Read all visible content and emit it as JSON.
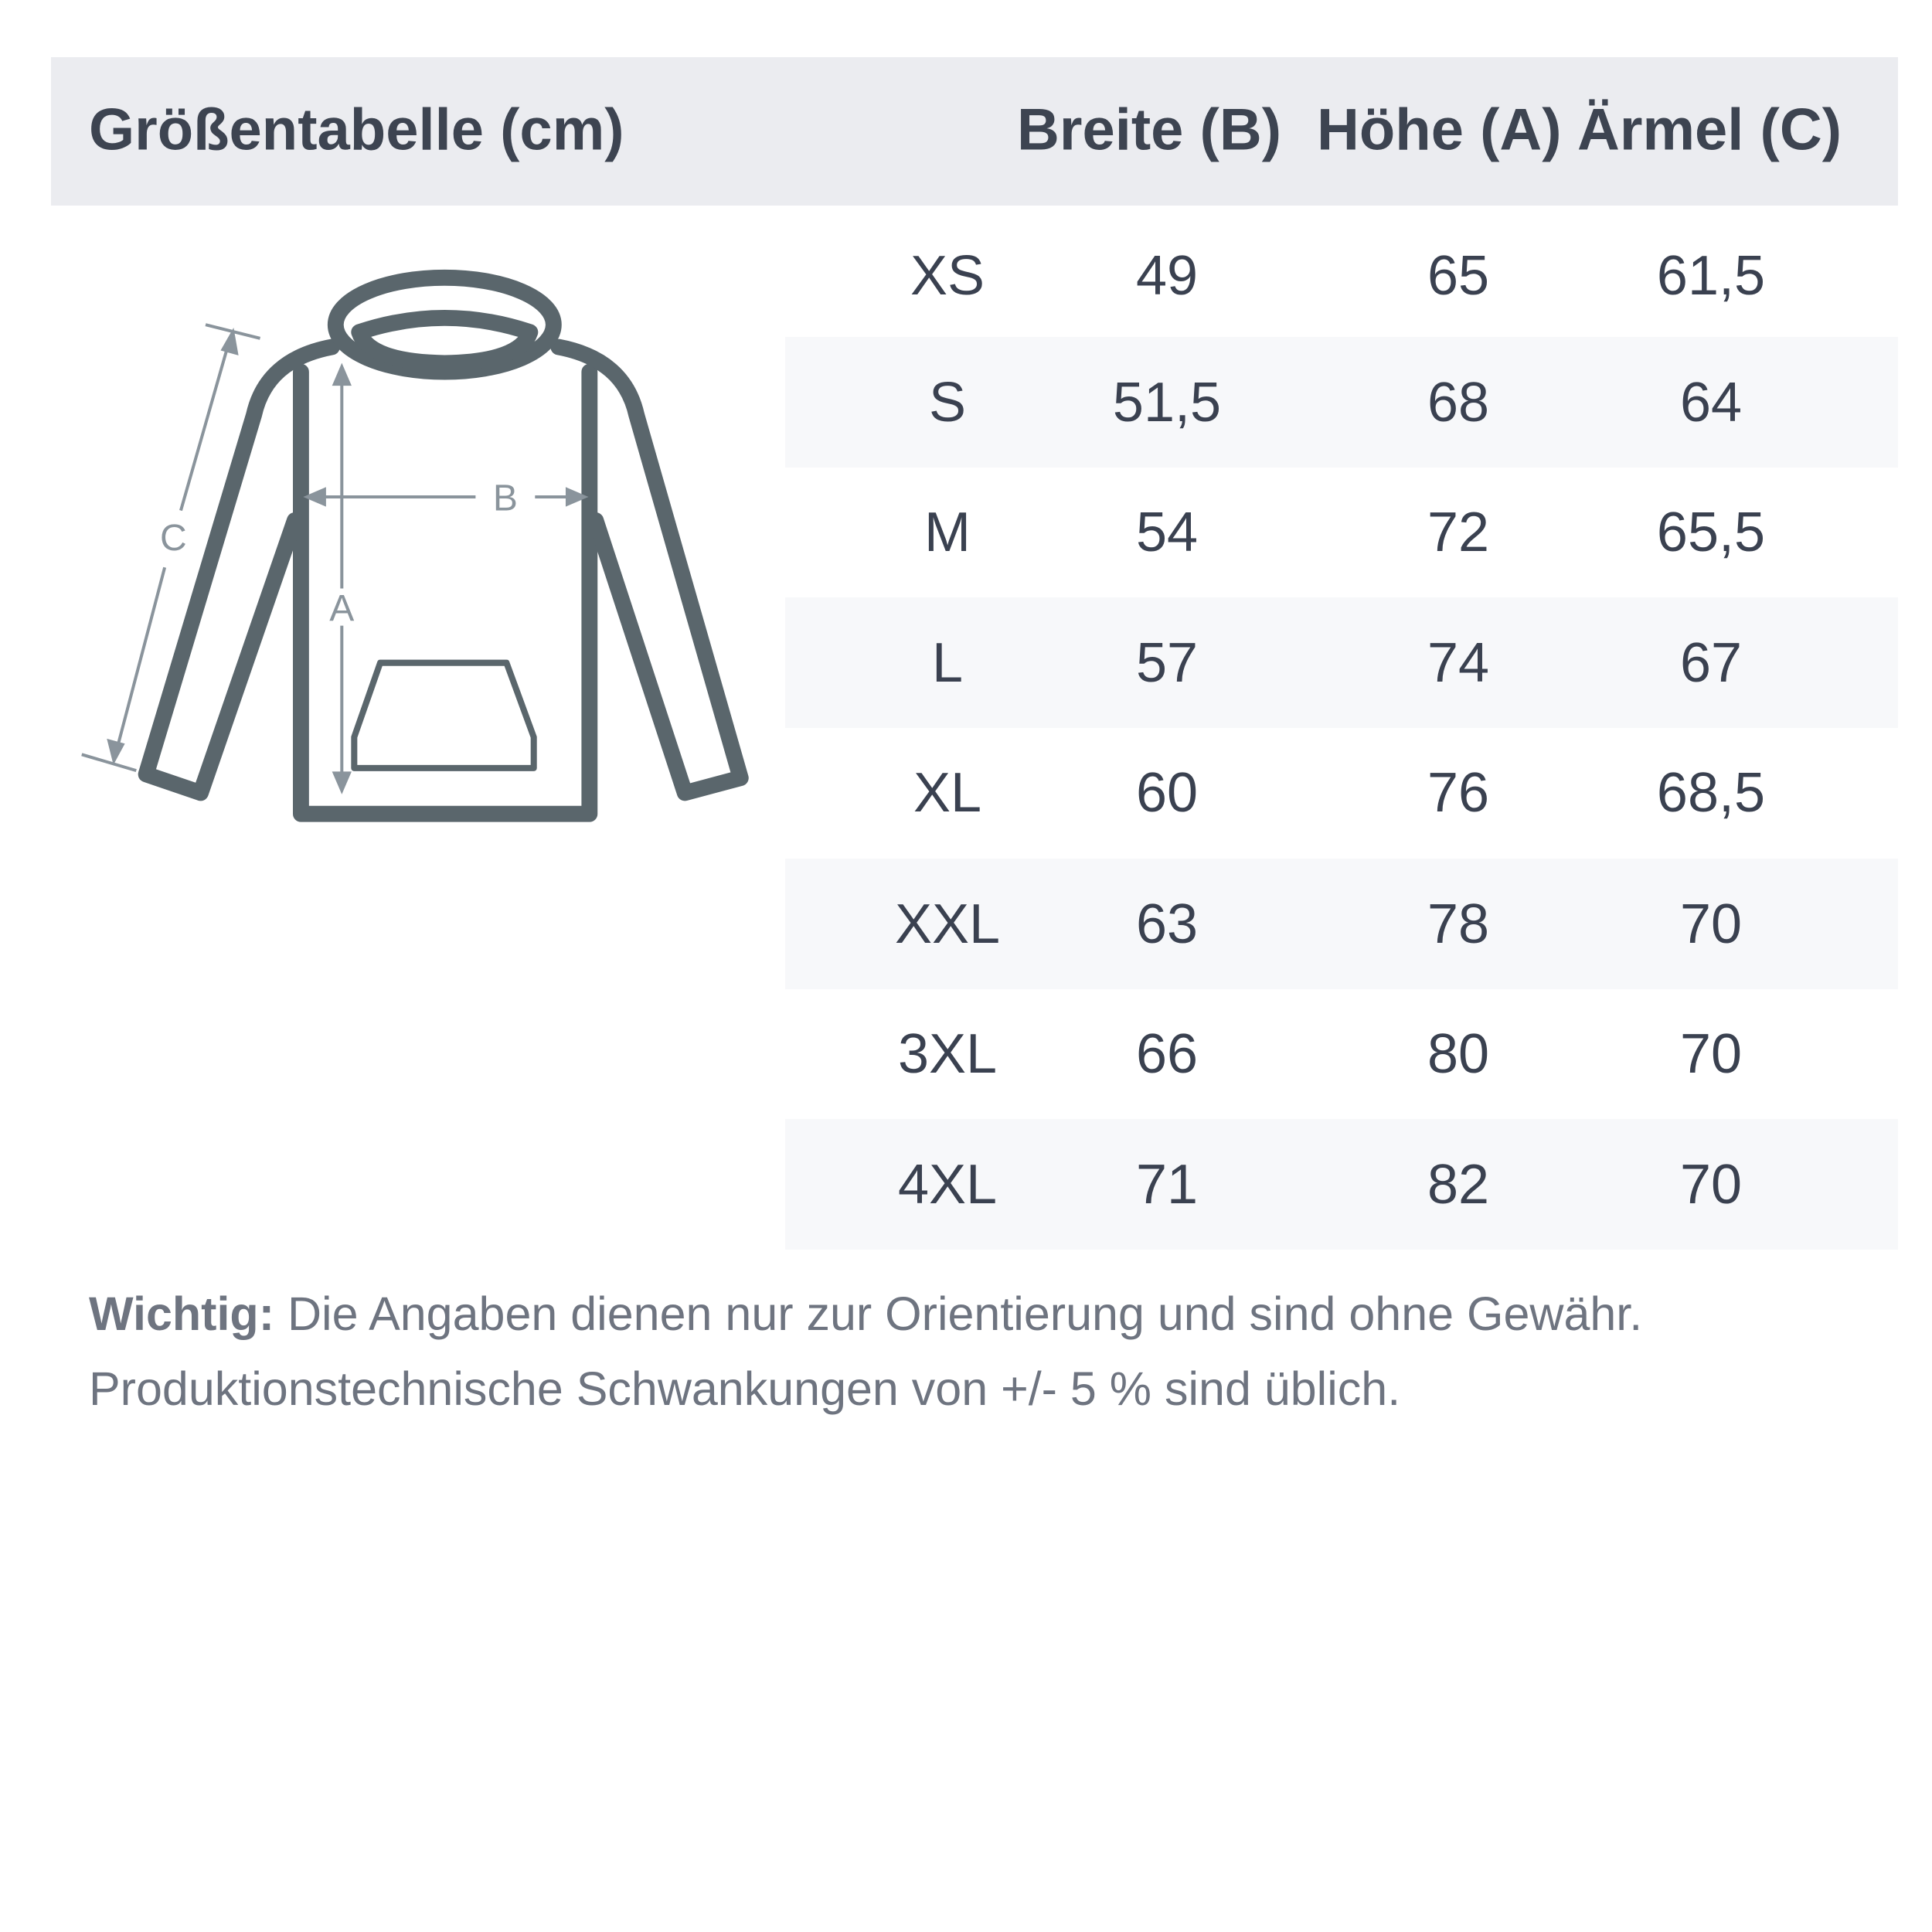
{
  "header": {
    "title": "Größentabelle (cm)",
    "columns": [
      "Breite (B)",
      "Höhe (A)",
      "Ärmel (C)"
    ]
  },
  "diagram": {
    "labels": {
      "a": "A",
      "b": "B",
      "c": "C"
    },
    "colors": {
      "outline": "#5a666c",
      "measure": "#8a949c"
    }
  },
  "rows": [
    {
      "size": "XS",
      "breite": "49",
      "hoehe": "65",
      "aermel": "61,5"
    },
    {
      "size": "S",
      "breite": "51,5",
      "hoehe": "68",
      "aermel": "64"
    },
    {
      "size": "M",
      "breite": "54",
      "hoehe": "72",
      "aermel": "65,5"
    },
    {
      "size": "L",
      "breite": "57",
      "hoehe": "74",
      "aermel": "67"
    },
    {
      "size": "XL",
      "breite": "60",
      "hoehe": "76",
      "aermel": "68,5"
    },
    {
      "size": "XXL",
      "breite": "63",
      "hoehe": "78",
      "aermel": "70"
    },
    {
      "size": "3XL",
      "breite": "66",
      "hoehe": "80",
      "aermel": "70"
    },
    {
      "size": "4XL",
      "breite": "71",
      "hoehe": "82",
      "aermel": "70"
    }
  ],
  "note": {
    "bold": "Wichtig:",
    "line1": " Die Angaben dienen nur zur Orientierung und sind ohne Gewähr.",
    "line2": "Produktionstechnische Schwankungen von +/- 5 % sind üblich."
  }
}
